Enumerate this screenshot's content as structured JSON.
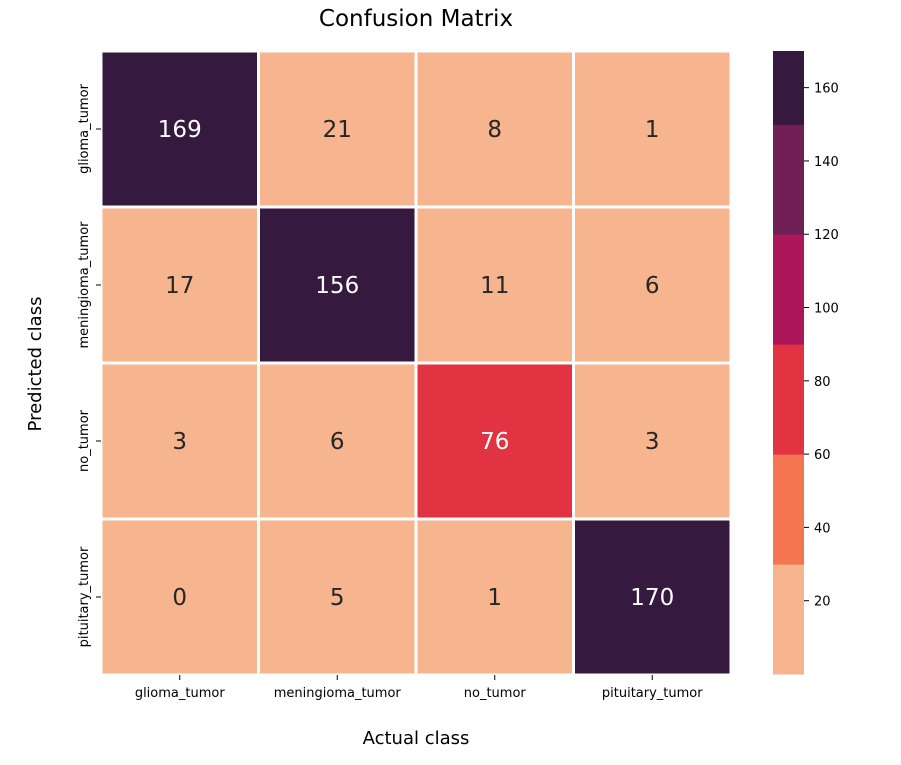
{
  "chart_data": {
    "type": "heatmap",
    "title": "Confusion Matrix",
    "xlabel": "Actual class",
    "ylabel": "Predicted class",
    "x_categories": [
      "glioma_tumor",
      "meningioma_tumor",
      "no_tumor",
      "pituitary_tumor"
    ],
    "y_categories": [
      "glioma_tumor",
      "meningioma_tumor",
      "no_tumor",
      "pituitary_tumor"
    ],
    "values": [
      [
        169,
        21,
        8,
        1
      ],
      [
        17,
        156,
        11,
        6
      ],
      [
        3,
        6,
        76,
        3
      ],
      [
        0,
        5,
        1,
        170
      ]
    ],
    "colorbar": {
      "range": [
        0,
        170
      ],
      "ticks": [
        20,
        40,
        60,
        80,
        100,
        120,
        140,
        160
      ],
      "bins": [
        {
          "from": 0,
          "to": 30,
          "color": "#f6b48f"
        },
        {
          "from": 30,
          "to": 60,
          "color": "#f37651"
        },
        {
          "from": 60,
          "to": 90,
          "color": "#e13342"
        },
        {
          "from": 90,
          "to": 120,
          "color": "#ad1759"
        },
        {
          "from": 120,
          "to": 150,
          "color": "#701f57"
        },
        {
          "from": 150,
          "to": 170,
          "color": "#35193e"
        }
      ]
    },
    "annotation_colors": {
      "dark_text": "#262626",
      "light_text": "#ffffff"
    },
    "grid_line_color": "#ffffff"
  }
}
